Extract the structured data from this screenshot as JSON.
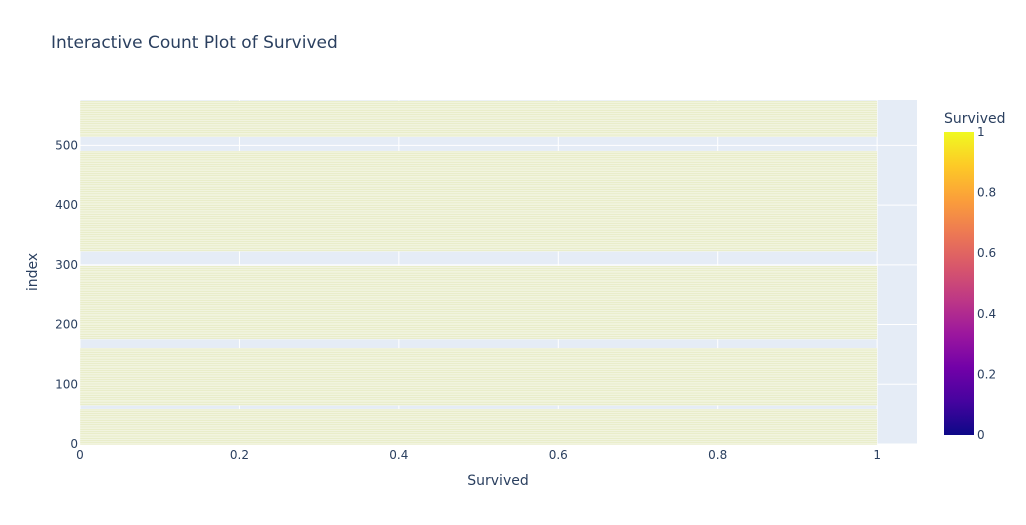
{
  "chart_data": {
    "type": "bar",
    "orientation": "horizontal",
    "title": "Interactive Count Plot of Survived",
    "xlabel": "Survived",
    "ylabel": "index",
    "xlim": [
      0,
      1.05
    ],
    "ylim": [
      0,
      576
    ],
    "x_ticks": [
      "0",
      "0.2",
      "0.4",
      "0.6",
      "0.8",
      "1"
    ],
    "y_ticks": [
      "0",
      "100",
      "200",
      "300",
      "400",
      "500"
    ],
    "grid": true,
    "bar_value": 1,
    "bars_y_range": [
      0,
      575
    ],
    "gap_bands": [
      [
        58,
        66
      ],
      [
        162,
        176
      ],
      [
        300,
        322
      ],
      [
        492,
        516
      ]
    ],
    "colorbar": {
      "title": "Survived",
      "ticks": [
        "0",
        "0.2",
        "0.4",
        "0.6",
        "0.8",
        "1"
      ],
      "range": [
        0,
        1
      ]
    },
    "colors": {
      "plot_bg": "#e5ecf6",
      "bar_fill": "#e9edca",
      "bar_line": "#ffffff",
      "grid": "#ffffff"
    }
  }
}
